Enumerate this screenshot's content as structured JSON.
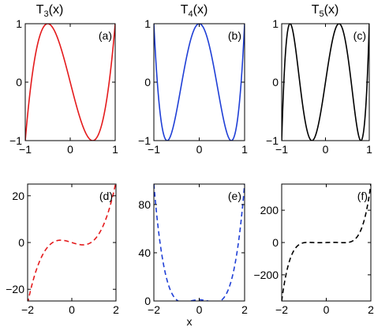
{
  "figure": {
    "xlabel": "x"
  },
  "chart_data": [
    {
      "type": "line",
      "id": "a",
      "title": "T3(x)",
      "title_base": "T",
      "title_sub": "3",
      "title_tail": "(x)",
      "panel_label": "(a)",
      "xlim": [
        -1,
        1
      ],
      "ylim": [
        -1,
        1
      ],
      "xticks": [
        -1,
        0,
        1
      ],
      "yticks": [
        -1,
        0,
        1
      ],
      "series": [
        {
          "expr": "4x^3 - 3x",
          "coeffs": [
            0,
            -3,
            0,
            4
          ],
          "color": "#e41a1c",
          "style": "solid"
        }
      ]
    },
    {
      "type": "line",
      "id": "b",
      "title": "T4(x)",
      "title_base": "T",
      "title_sub": "4",
      "title_tail": "(x)",
      "panel_label": "(b)",
      "xlim": [
        -1,
        1
      ],
      "ylim": [
        -1,
        1
      ],
      "xticks": [
        -1,
        0,
        1
      ],
      "yticks": [
        -1,
        0,
        1
      ],
      "series": [
        {
          "expr": "8x^4 - 8x^2 + 1",
          "coeffs": [
            1,
            0,
            -8,
            0,
            8
          ],
          "color": "#1f3fd6",
          "style": "solid"
        }
      ]
    },
    {
      "type": "line",
      "id": "c",
      "title": "T5(x)",
      "title_base": "T",
      "title_sub": "5",
      "title_tail": "(x)",
      "panel_label": "(c)",
      "xlim": [
        -1,
        1
      ],
      "ylim": [
        -1,
        1
      ],
      "xticks": [
        -1,
        0,
        1
      ],
      "yticks": [
        -1,
        0,
        1
      ],
      "series": [
        {
          "expr": "16x^5 - 20x^3 + 5x",
          "coeffs": [
            0,
            5,
            0,
            -20,
            0,
            16
          ],
          "color": "#000000",
          "style": "solid"
        }
      ]
    },
    {
      "type": "line",
      "id": "d",
      "panel_label": "(d)",
      "xlim": [
        -2,
        2
      ],
      "ylim": [
        -25,
        25
      ],
      "xticks": [
        -2,
        0,
        2
      ],
      "yticks": [
        -20,
        0,
        20
      ],
      "series": [
        {
          "expr": "4x^3 - 3x",
          "coeffs": [
            0,
            -3,
            0,
            4
          ],
          "color": "#e41a1c",
          "style": "dashed"
        }
      ]
    },
    {
      "type": "line",
      "id": "e",
      "panel_label": "(e)",
      "xlim": [
        -2,
        2
      ],
      "ylim": [
        0,
        97
      ],
      "xticks": [
        -2,
        0,
        2
      ],
      "yticks": [
        0,
        40,
        80
      ],
      "series": [
        {
          "expr": "8x^4 - 8x^2 + 1",
          "coeffs": [
            1,
            0,
            -8,
            0,
            8
          ],
          "color": "#1f3fd6",
          "style": "dashed"
        }
      ]
    },
    {
      "type": "line",
      "id": "f",
      "panel_label": "(f)",
      "xlim": [
        -2,
        2
      ],
      "ylim": [
        -362,
        362
      ],
      "xticks": [
        -2,
        0,
        2
      ],
      "yticks": [
        -200,
        0,
        200
      ],
      "series": [
        {
          "expr": "16x^5 - 20x^3 + 5x",
          "coeffs": [
            0,
            5,
            0,
            -20,
            0,
            16
          ],
          "color": "#000000",
          "style": "dashed"
        }
      ]
    }
  ]
}
